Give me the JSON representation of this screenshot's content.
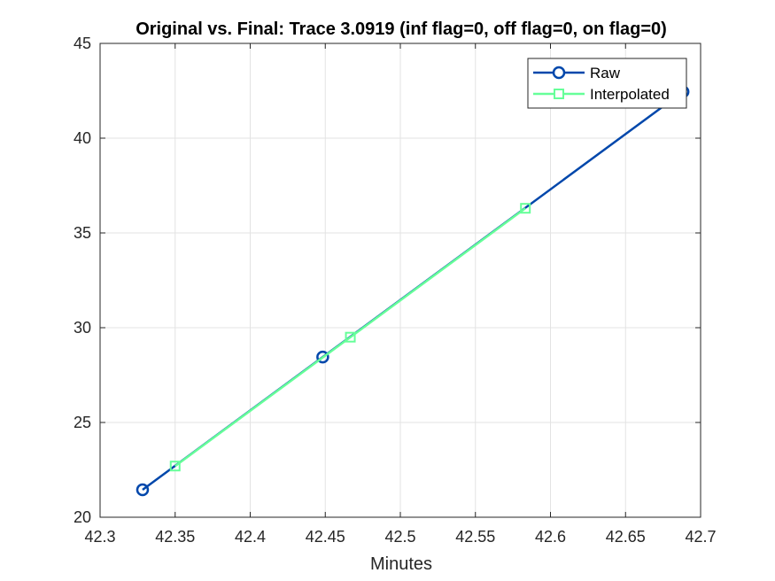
{
  "chart_data": {
    "type": "line",
    "title": "Original vs. Final: Trace 3.0919 (inf flag=0, off flag=0, on flag=0)",
    "xlabel": "Minutes",
    "ylabel": "",
    "xlim": [
      42.3,
      42.7
    ],
    "ylim": [
      20,
      45
    ],
    "xticks": [
      42.3,
      42.35,
      42.4,
      42.45,
      42.5,
      42.55,
      42.6,
      42.65,
      42.7
    ],
    "xtick_labels": [
      "42.3",
      "42.35",
      "42.4",
      "42.45",
      "42.5",
      "42.55",
      "42.6",
      "42.65",
      "42.7"
    ],
    "yticks": [
      20,
      25,
      30,
      35,
      40,
      45
    ],
    "ytick_labels": [
      "20",
      "25",
      "30",
      "35",
      "40",
      "45"
    ],
    "grid": true,
    "legend_position": "top-right",
    "series": [
      {
        "name": "Raw",
        "color": "#0047AB",
        "marker": "circle",
        "x": [
          42.3283,
          42.4483,
          42.6883
        ],
        "y": [
          21.45,
          28.45,
          42.45
        ]
      },
      {
        "name": "Interpolated",
        "color": "#66FF99",
        "marker": "square",
        "x": [
          42.35,
          42.4667,
          42.5833
        ],
        "y": [
          22.7,
          29.5,
          36.3
        ]
      }
    ]
  }
}
